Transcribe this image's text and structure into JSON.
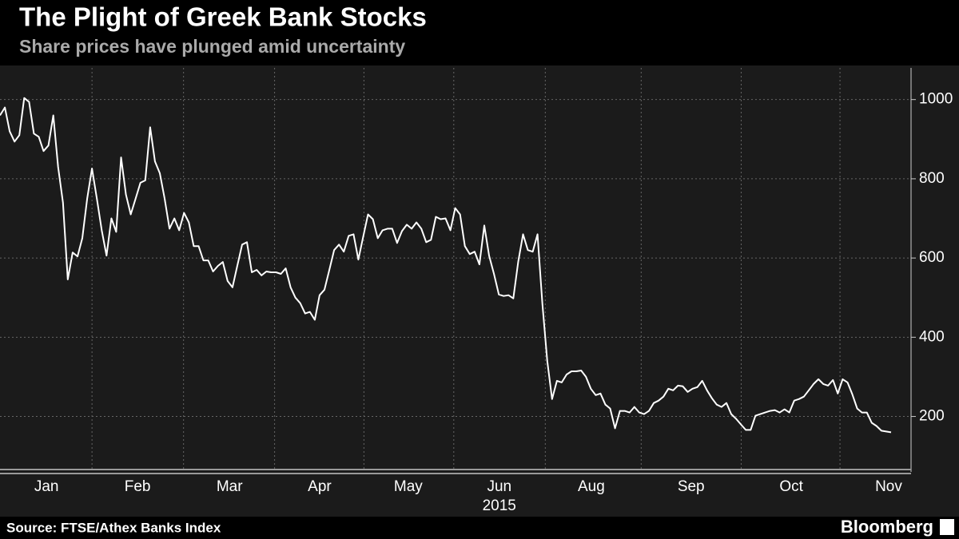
{
  "chart_data": {
    "type": "line",
    "title": "The Plight of Greek Bank Stocks",
    "subtitle": "Share prices have plunged amid uncertainty",
    "year_label": "2015",
    "source": "Source: FTSE/Athex Banks Index",
    "brand": "Bloomberg",
    "color": "#ffffff",
    "grid": true,
    "xlim": [
      0,
      184
    ],
    "xticks": [
      {
        "value": 9.6,
        "label": "Jan"
      },
      {
        "value": 28.4,
        "label": "Feb"
      },
      {
        "value": 47.4,
        "label": "Mar"
      },
      {
        "value": 66,
        "label": "Apr"
      },
      {
        "value": 84.3,
        "label": "May"
      },
      {
        "value": 103.1,
        "label": "Jun"
      },
      {
        "value": 122.1,
        "label": "Aug"
      },
      {
        "value": 142.7,
        "label": "Sep"
      },
      {
        "value": 163.4,
        "label": "Oct"
      },
      {
        "value": 183.5,
        "label": "Nov"
      }
    ],
    "ylim": [
      60,
      1080
    ],
    "yticks": [
      200,
      400,
      600,
      800,
      1000
    ],
    "values": [
      960,
      980,
      920,
      894,
      910,
      1004,
      994,
      914,
      906,
      870,
      884,
      960,
      830,
      740,
      546,
      614,
      604,
      650,
      750,
      826,
      750,
      670,
      606,
      700,
      666,
      854,
      760,
      710,
      750,
      790,
      796,
      930,
      844,
      814,
      750,
      674,
      700,
      670,
      714,
      690,
      630,
      630,
      594,
      594,
      566,
      580,
      590,
      542,
      526,
      580,
      634,
      640,
      564,
      570,
      556,
      566,
      564,
      564,
      560,
      574,
      526,
      500,
      486,
      460,
      464,
      444,
      506,
      520,
      570,
      620,
      634,
      616,
      656,
      660,
      596,
      654,
      710,
      698,
      650,
      670,
      674,
      674,
      638,
      668,
      684,
      674,
      690,
      674,
      640,
      646,
      704,
      698,
      700,
      670,
      726,
      710,
      630,
      610,
      616,
      584,
      682,
      606,
      560,
      508,
      504,
      506,
      498,
      590,
      660,
      620,
      616,
      660,
      484,
      340,
      244,
      290,
      286,
      306,
      314,
      314,
      316,
      300,
      270,
      254,
      258,
      230,
      220,
      170,
      214,
      214,
      210,
      224,
      210,
      206,
      214,
      234,
      240,
      250,
      270,
      266,
      278,
      276,
      262,
      270,
      274,
      290,
      266,
      246,
      230,
      224,
      234,
      206,
      194,
      180,
      166,
      166,
      202,
      206,
      210,
      214,
      216,
      210,
      218,
      210,
      240,
      244,
      250,
      266,
      282,
      294,
      282,
      278,
      292,
      258,
      294,
      286,
      256,
      220,
      210,
      210,
      184,
      176,
      164,
      162,
      160
    ]
  }
}
